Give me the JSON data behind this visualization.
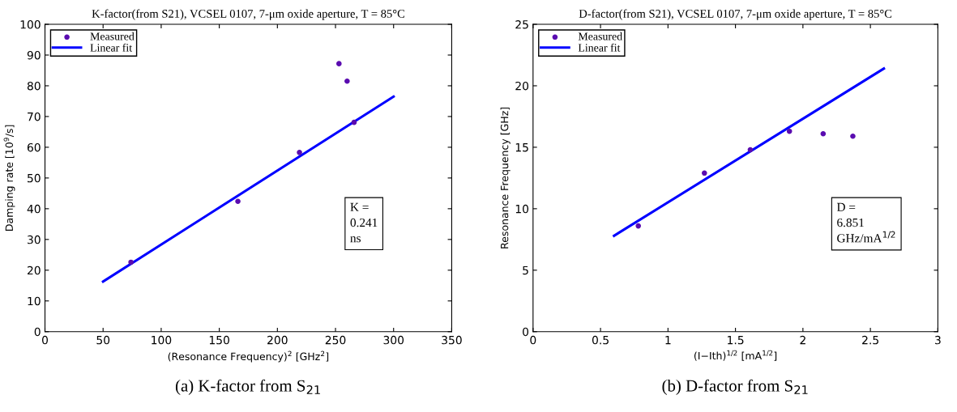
{
  "chart_data": [
    {
      "type": "scatter",
      "title": "K-factor(from S21), VCSEL 0107, 7-μm oxide aperture, T = 85°C",
      "xlabel": "(Resonance Frequency)$^{2}$ [GHz$^{2}$]",
      "ylabel": "Damping rate [10$^{9}$/s]",
      "xlim": [
        0,
        350
      ],
      "xticks": [
        0,
        50,
        100,
        150,
        200,
        250,
        300,
        350
      ],
      "ylim": [
        0,
        100
      ],
      "yticks": [
        0,
        10,
        20,
        30,
        40,
        50,
        60,
        70,
        80,
        90,
        100
      ],
      "grid": false,
      "legend": "top left",
      "series": [
        {
          "name": "Measured",
          "marker": "circle",
          "color": "#5a0cb0",
          "x": [
            74,
            166,
            219,
            253,
            260,
            266
          ],
          "values": [
            22.6,
            42.4,
            58.3,
            87.2,
            81.5,
            68.1
          ]
        },
        {
          "name": "Linear fit",
          "type": "line",
          "line_style": "solid",
          "color": "#0000ff",
          "x": [
            50,
            300
          ],
          "values": [
            16.3,
            76.5
          ]
        }
      ],
      "annotations": [
        "K =\n0.241\nns",
        "(a) K-factor from S$_{21}$"
      ]
    },
    {
      "type": "scatter",
      "title": "D-factor(from S21), VCSEL 0107, 7-μm oxide aperture, T = 85°C",
      "xlabel": "(I−Ith)$^{1/2}$ [mA$^{1/2}$]",
      "ylabel": "Resonance Frequency [GHz]",
      "xlim": [
        0,
        3
      ],
      "xticks": [
        0,
        0.5,
        1,
        1.5,
        2,
        2.5,
        3
      ],
      "ylim": [
        0,
        25
      ],
      "yticks": [
        0,
        5,
        10,
        15,
        20,
        25
      ],
      "grid": false,
      "legend": "top left",
      "series": [
        {
          "name": "Measured",
          "marker": "circle",
          "color": "#5a0cb0",
          "x": [
            0.78,
            1.27,
            1.61,
            1.9,
            2.15,
            2.37
          ],
          "values": [
            8.6,
            12.9,
            14.8,
            16.3,
            16.1,
            15.9
          ]
        },
        {
          "name": "Linear fit",
          "type": "line",
          "line_style": "solid",
          "color": "#0000ff",
          "x": [
            0.6,
            2.6
          ],
          "values": [
            7.8,
            21.4
          ]
        }
      ],
      "annotations": [
        "D =\n6.851\nGHz/mA$^{1/2}$",
        "(b) D-factor from S$_{21}$"
      ]
    }
  ]
}
